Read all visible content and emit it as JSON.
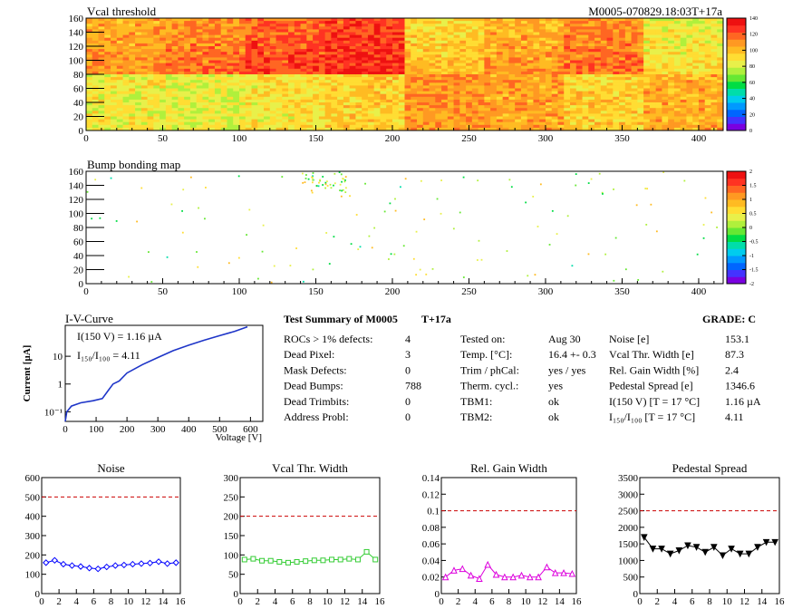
{
  "header": {
    "map1_title": "Vcal threshold",
    "module_id": "M0005-070829.18:03T+17a",
    "map2_title": "Bump bonding map"
  },
  "maps": {
    "x_ticks": [
      "0",
      "50",
      "100",
      "150",
      "200",
      "250",
      "300",
      "350",
      "400"
    ],
    "y_ticks": [
      "0",
      "20",
      "40",
      "60",
      "80",
      "100",
      "120",
      "140",
      "160"
    ],
    "xlim": [
      0,
      416
    ],
    "ylim": [
      0,
      160
    ],
    "map1_scale": [
      "0",
      "20",
      "40",
      "60",
      "80",
      "100",
      "120",
      "140"
    ],
    "map2_scale": [
      "-2",
      "-1.5",
      "-1",
      "-0.5",
      "0",
      "0.5",
      "1",
      "1.5",
      "2"
    ]
  },
  "iv": {
    "title": "I-V-Curve",
    "ylabel": "Current [µA]",
    "xlabel": "Voltage [V]",
    "x_ticks": [
      "0",
      "100",
      "200",
      "300",
      "400",
      "500",
      "600"
    ],
    "y_ticks": [
      "10⁻¹",
      "1",
      "10"
    ],
    "note1": "I(150 V) = 1.16 µA",
    "note2": "I₁₅₀/I₁₀₀ = 4.11"
  },
  "summary": {
    "title": "Test Summary of M0005",
    "tag": "T+17a",
    "grade_label": "GRADE:  C",
    "col1": [
      {
        "label": "ROCs > 1% defects:",
        "value": "4"
      },
      {
        "label": "Dead Pixel:",
        "value": "3"
      },
      {
        "label": "Mask Defects:",
        "value": "0"
      },
      {
        "label": "Dead Bumps:",
        "value": "788"
      },
      {
        "label": "Dead Trimbits:",
        "value": "0"
      },
      {
        "label": "Address Probl:",
        "value": "0"
      }
    ],
    "col2": [
      {
        "label": "Tested on:",
        "value": "Aug 30"
      },
      {
        "label": "Temp. [°C]:",
        "value": "16.4 +- 0.3"
      },
      {
        "label": "Trim / phCal:",
        "value": "yes / yes"
      },
      {
        "label": "Therm. cycl.:",
        "value": "yes"
      },
      {
        "label": "TBM1:",
        "value": "ok"
      },
      {
        "label": "TBM2:",
        "value": "ok"
      }
    ],
    "col3": [
      {
        "label": "Noise [e]",
        "value": "153.1"
      },
      {
        "label": "Vcal Thr. Width [e]",
        "value": "87.3"
      },
      {
        "label": "Rel. Gain Width [%]",
        "value": "2.4"
      },
      {
        "label": "Pedestal Spread [e]",
        "value": "1346.6"
      },
      {
        "label": "I(150 V) [T = 17 °C]",
        "value": "1.16 µA"
      },
      {
        "label": "I₁₅₀/I₁₀₀  [T = 17 °C]",
        "value": "4.11"
      }
    ]
  },
  "chart_data": [
    {
      "type": "line",
      "title": "Noise",
      "x": [
        0,
        1,
        2,
        3,
        4,
        5,
        6,
        7,
        8,
        9,
        10,
        11,
        12,
        13,
        14,
        15
      ],
      "values": [
        160,
        172,
        152,
        145,
        140,
        132,
        128,
        138,
        145,
        148,
        152,
        155,
        158,
        165,
        155,
        160
      ],
      "ylim": [
        0,
        600
      ],
      "y_ticks": [
        "0",
        "100",
        "200",
        "300",
        "400",
        "500",
        "600"
      ],
      "x_ticks": [
        "0",
        "2",
        "4",
        "6",
        "8",
        "10",
        "12",
        "14",
        "16"
      ],
      "threshold": 500,
      "marker": "diamond",
      "color": "#0000ff"
    },
    {
      "type": "line",
      "title": "Vcal Thr. Width",
      "x": [
        0,
        1,
        2,
        3,
        4,
        5,
        6,
        7,
        8,
        9,
        10,
        11,
        12,
        13,
        14,
        15
      ],
      "values": [
        88,
        90,
        85,
        85,
        82,
        80,
        82,
        84,
        86,
        86,
        88,
        88,
        90,
        88,
        108,
        88
      ],
      "ylim": [
        0,
        300
      ],
      "y_ticks": [
        "0",
        "50",
        "100",
        "150",
        "200",
        "250",
        "300"
      ],
      "x_ticks": [
        "0",
        "2",
        "4",
        "6",
        "8",
        "10",
        "12",
        "14",
        "16"
      ],
      "threshold": 200,
      "marker": "square",
      "color": "#33cc33"
    },
    {
      "type": "line",
      "title": "Rel. Gain Width",
      "x": [
        0,
        1,
        2,
        3,
        4,
        5,
        6,
        7,
        8,
        9,
        10,
        11,
        12,
        13,
        14,
        15
      ],
      "values": [
        0.02,
        0.028,
        0.03,
        0.022,
        0.018,
        0.035,
        0.023,
        0.02,
        0.02,
        0.022,
        0.02,
        0.02,
        0.032,
        0.025,
        0.025,
        0.024
      ],
      "ylim": [
        0,
        0.14
      ],
      "y_ticks": [
        "0",
        "0.02",
        "0.04",
        "0.06",
        "0.08",
        "0.1",
        "0.12",
        "0.14"
      ],
      "x_ticks": [
        "0",
        "2",
        "4",
        "6",
        "8",
        "10",
        "12",
        "14",
        "16"
      ],
      "threshold": 0.1,
      "marker": "triangle",
      "color": "#dd00dd"
    },
    {
      "type": "line",
      "title": "Pedestal Spread",
      "x": [
        0,
        1,
        2,
        3,
        4,
        5,
        6,
        7,
        8,
        9,
        10,
        11,
        12,
        13,
        14,
        15
      ],
      "values": [
        1700,
        1350,
        1350,
        1200,
        1300,
        1450,
        1400,
        1250,
        1400,
        1150,
        1350,
        1200,
        1200,
        1400,
        1550,
        1550
      ],
      "ylim": [
        0,
        3500
      ],
      "y_ticks": [
        "0",
        "500",
        "1000",
        "1500",
        "2000",
        "2500",
        "3000",
        "3500"
      ],
      "x_ticks": [
        "0",
        "2",
        "4",
        "6",
        "8",
        "10",
        "12",
        "14",
        "16"
      ],
      "threshold": 2500,
      "marker": "triangle-down",
      "color": "#000000"
    }
  ]
}
